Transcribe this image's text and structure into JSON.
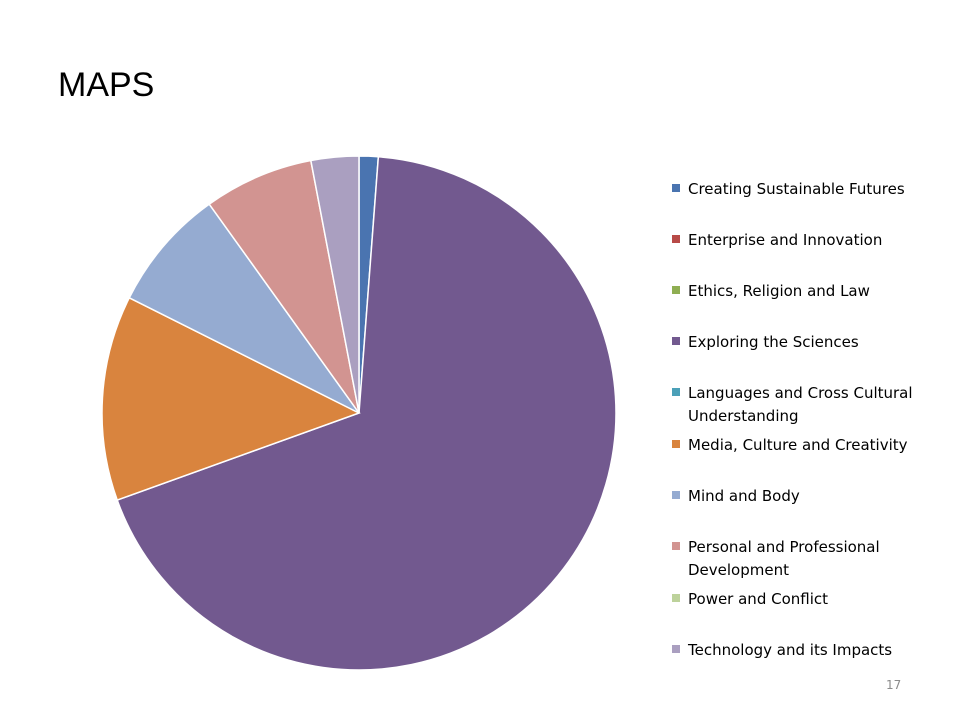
{
  "slide": {
    "title": "MAPS",
    "page_number": "17"
  },
  "chart_data": {
    "type": "pie",
    "title": "",
    "legend_position": "right",
    "start_angle": "12 o'clock, clockwise",
    "series": [
      {
        "categories": [
          "Creating Sustainable Futures",
          "Enterprise and Innovation",
          "Ethics, Religion and Law",
          "Exploring the Sciences",
          "Languages and Cross Cultural Understanding",
          "Media, Culture and Creativity",
          "Mind and Body",
          "Personal and Professional Development",
          "Power and Conflict",
          "Technology and its Impacts"
        ],
        "values": [
          1.2,
          0,
          0,
          68.3,
          0,
          12.9,
          7.7,
          6.9,
          0,
          3.0
        ],
        "colors": [
          "#4a74b0",
          "#b84a47",
          "#8fae52",
          "#72598f",
          "#4ba0b8",
          "#d9843e",
          "#95abd1",
          "#d29491",
          "#bdd29b",
          "#aa9fc0"
        ]
      }
    ]
  }
}
